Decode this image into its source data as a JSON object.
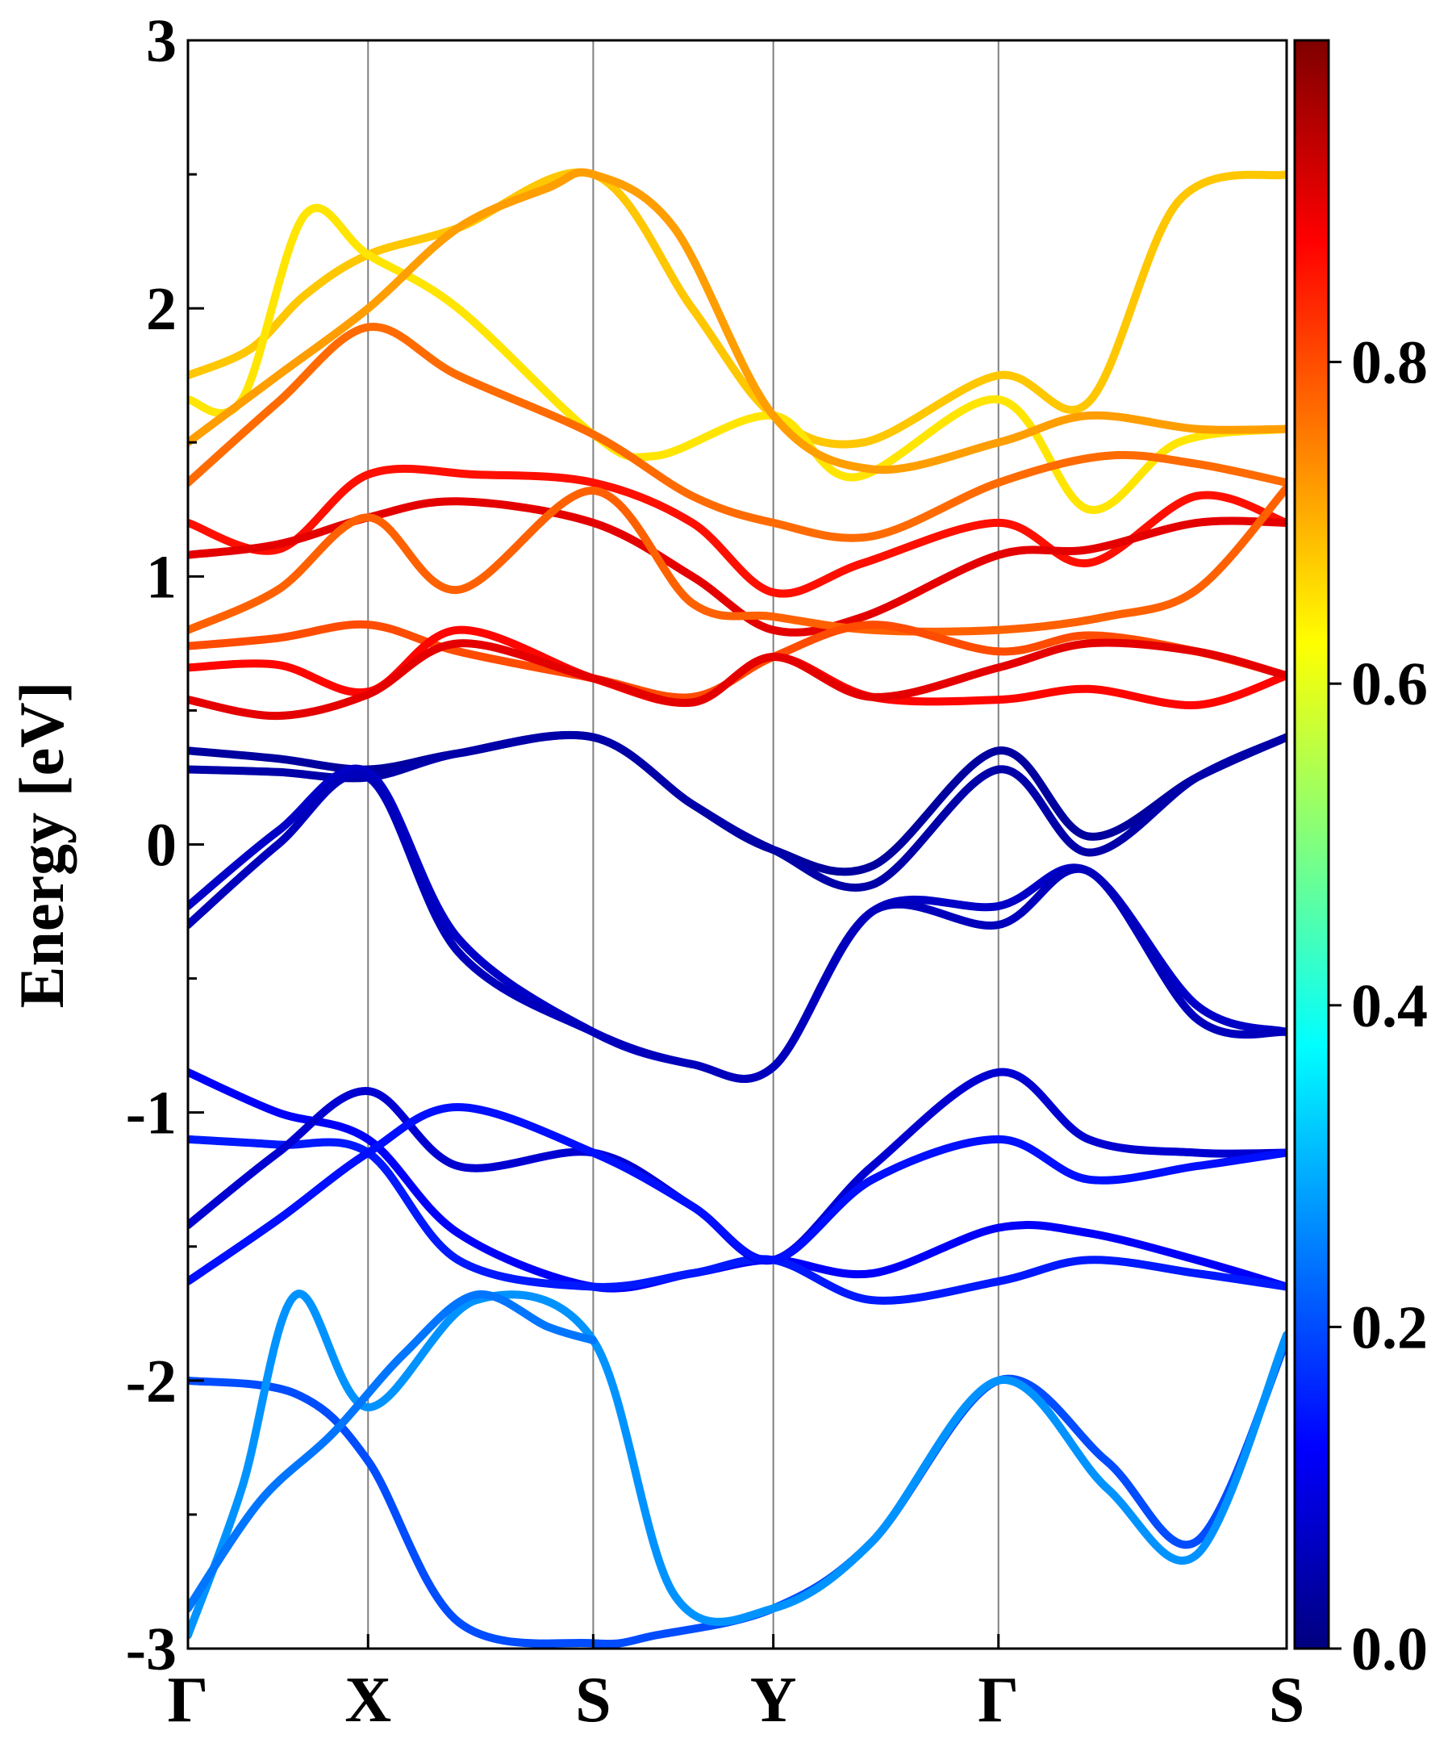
{
  "chart_data": {
    "type": "line",
    "title": "",
    "xlabel": "",
    "ylabel": "Energy [eV]",
    "ylim": [
      -3,
      3
    ],
    "yticks": [
      "3",
      "2",
      "1",
      "0",
      "-1",
      "-2",
      "-3"
    ],
    "ytick_values": [
      3,
      2,
      1,
      0,
      -1,
      -2,
      -3
    ],
    "kpath": {
      "labels": [
        "Γ",
        "X",
        "S",
        "Y",
        "Γ",
        "S"
      ],
      "positions": [
        0,
        1,
        2.25,
        3.25,
        4.5,
        6.1
      ]
    },
    "colorbar": {
      "range": [
        0.0,
        1.0
      ],
      "ticks": [
        "0.0",
        "0.2",
        "0.4",
        "0.6",
        "0.8"
      ],
      "tick_values": [
        0.0,
        0.2,
        0.4,
        0.6,
        0.8
      ],
      "colormap": "jet",
      "colormap_stops": [
        "#00007f",
        "#0000ff",
        "#007fff",
        "#00ffff",
        "#7fff7f",
        "#ffff00",
        "#ff7f00",
        "#ff0000",
        "#7f0000"
      ]
    },
    "series": [
      {
        "x": [
          0,
          0.35,
          0.65,
          1,
          1.5,
          2.25,
          2.8,
          3.25,
          3.75,
          4.5,
          5,
          5.5,
          6.1
        ],
        "y": [
          1.75,
          1.85,
          2.05,
          2.2,
          2.3,
          2.5,
          2.0,
          1.6,
          1.5,
          1.75,
          1.65,
          2.4,
          2.5
        ],
        "c": 0.68
      },
      {
        "x": [
          0,
          0.3,
          0.65,
          1,
          1.5,
          2.25,
          2.6,
          3.25,
          3.7,
          4.5,
          5,
          5.5,
          6.1
        ],
        "y": [
          1.66,
          1.66,
          2.35,
          2.2,
          2.0,
          1.53,
          1.45,
          1.6,
          1.37,
          1.66,
          1.25,
          1.5,
          1.55
        ],
        "c": 0.65
      },
      {
        "x": [
          0,
          0.5,
          1,
          1.5,
          2,
          2.25,
          2.7,
          3.25,
          3.8,
          4.5,
          5,
          5.6,
          6.1
        ],
        "y": [
          1.5,
          1.75,
          2.0,
          2.3,
          2.45,
          2.5,
          2.3,
          1.6,
          1.4,
          1.5,
          1.6,
          1.55,
          1.55
        ],
        "c": 0.72
      },
      {
        "x": [
          0,
          0.5,
          1,
          1.5,
          2.25,
          2.8,
          3.25,
          3.8,
          4.5,
          5.1,
          5.6,
          6.1
        ],
        "y": [
          1.35,
          1.65,
          1.93,
          1.75,
          1.53,
          1.3,
          1.2,
          1.15,
          1.35,
          1.45,
          1.42,
          1.35
        ],
        "c": 0.77
      },
      {
        "x": [
          0,
          0.5,
          1,
          1.6,
          2.25,
          2.8,
          3.25,
          3.75,
          4.5,
          5,
          5.6,
          6.1
        ],
        "y": [
          1.2,
          1.1,
          1.38,
          1.38,
          1.35,
          1.2,
          0.94,
          1.05,
          1.2,
          1.05,
          1.3,
          1.2
        ],
        "c": 0.86
      },
      {
        "x": [
          0,
          0.5,
          1,
          1.5,
          2.25,
          2.8,
          3.25,
          3.75,
          4.5,
          5,
          5.6,
          6.1
        ],
        "y": [
          1.08,
          1.12,
          1.22,
          1.28,
          1.2,
          1.0,
          0.8,
          0.85,
          1.08,
          1.1,
          1.2,
          1.2
        ],
        "c": 0.9
      },
      {
        "x": [
          0,
          0.5,
          1,
          1.5,
          2.25,
          2.8,
          3.25,
          3.8,
          4.5,
          5.1,
          5.6,
          6.1
        ],
        "y": [
          0.8,
          0.95,
          1.22,
          0.95,
          1.32,
          0.9,
          0.85,
          0.8,
          0.8,
          0.85,
          0.95,
          1.33
        ],
        "c": 0.78
      },
      {
        "x": [
          0,
          0.5,
          1,
          1.5,
          2.25,
          2.8,
          3.25,
          3.8,
          4.5,
          5,
          5.6,
          6.1
        ],
        "y": [
          0.74,
          0.77,
          0.82,
          0.72,
          0.62,
          0.55,
          0.7,
          0.82,
          0.72,
          0.78,
          0.72,
          0.63
        ],
        "c": 0.8
      },
      {
        "x": [
          0,
          0.5,
          1,
          1.5,
          2.25,
          2.8,
          3.25,
          3.8,
          4.5,
          5,
          5.6,
          6.1
        ],
        "y": [
          0.66,
          0.67,
          0.57,
          0.8,
          0.62,
          0.53,
          0.7,
          0.55,
          0.54,
          0.58,
          0.52,
          0.63
        ],
        "c": 0.87
      },
      {
        "x": [
          0,
          0.5,
          1,
          1.5,
          2.25,
          2.8,
          3.25,
          3.8,
          4.5,
          5,
          5.6,
          6.1
        ],
        "y": [
          0.54,
          0.48,
          0.56,
          0.75,
          0.62,
          0.53,
          0.7,
          0.55,
          0.66,
          0.75,
          0.72,
          0.63
        ],
        "c": 0.9
      },
      {
        "x": [
          0,
          0.5,
          1,
          1.5,
          2.25,
          2.8,
          3.25,
          3.8,
          4.5,
          5,
          5.6,
          6.1
        ],
        "y": [
          0.35,
          0.32,
          0.28,
          0.34,
          0.4,
          0.15,
          -0.02,
          -0.08,
          0.35,
          0.03,
          0.25,
          0.4
        ],
        "c": 0.03
      },
      {
        "x": [
          0,
          0.5,
          1,
          1.5,
          2.25,
          2.8,
          3.25,
          3.8,
          4.5,
          5,
          5.6,
          6.1
        ],
        "y": [
          0.28,
          0.27,
          0.25,
          0.34,
          0.4,
          0.15,
          -0.02,
          -0.15,
          0.28,
          -0.03,
          0.25,
          0.4
        ],
        "c": 0.04
      },
      {
        "x": [
          0,
          0.5,
          1,
          1.5,
          2.25,
          2.8,
          3.25,
          3.8,
          4.5,
          5,
          5.6,
          6.1
        ],
        "y": [
          -0.23,
          0.05,
          0.27,
          -0.35,
          -0.7,
          -0.82,
          -0.83,
          -0.25,
          -0.23,
          -0.1,
          -0.6,
          -0.7
        ],
        "c": 0.07
      },
      {
        "x": [
          0,
          0.5,
          1,
          1.5,
          2.25,
          2.8,
          3.25,
          3.8,
          4.5,
          5,
          5.6,
          6.1
        ],
        "y": [
          -0.3,
          0.0,
          0.25,
          -0.4,
          -0.7,
          -0.82,
          -0.83,
          -0.25,
          -0.3,
          -0.1,
          -0.65,
          -0.7
        ],
        "c": 0.06
      },
      {
        "x": [
          0,
          0.5,
          1,
          1.5,
          2.25,
          2.8,
          3.25,
          3.8,
          4.5,
          5,
          5.6,
          6.1
        ],
        "y": [
          -0.85,
          -1.0,
          -1.1,
          -1.45,
          -1.65,
          -1.6,
          -1.55,
          -1.6,
          -1.43,
          -1.45,
          -1.55,
          -1.65
        ],
        "c": 0.12
      },
      {
        "x": [
          0,
          0.5,
          1,
          1.5,
          2.25,
          2.8,
          3.25,
          3.8,
          4.5,
          5,
          5.6,
          6.1
        ],
        "y": [
          -1.1,
          -1.12,
          -1.15,
          -1.55,
          -1.65,
          -1.6,
          -1.55,
          -1.7,
          -1.63,
          -1.55,
          -1.6,
          -1.65
        ],
        "c": 0.15
      },
      {
        "x": [
          0,
          0.5,
          1,
          1.5,
          2.25,
          2.8,
          3.25,
          3.8,
          4.5,
          5,
          5.6,
          6.1
        ],
        "y": [
          -1.42,
          -1.15,
          -0.92,
          -1.2,
          -1.15,
          -1.35,
          -1.55,
          -1.2,
          -0.85,
          -1.1,
          -1.15,
          -1.15
        ],
        "c": 0.08
      },
      {
        "x": [
          0,
          0.5,
          1,
          1.5,
          2.25,
          2.8,
          3.25,
          3.8,
          4.5,
          5,
          5.6,
          6.1
        ],
        "y": [
          -1.63,
          -1.4,
          -1.15,
          -0.98,
          -1.15,
          -1.35,
          -1.55,
          -1.25,
          -1.1,
          -1.25,
          -1.2,
          -1.15
        ],
        "c": 0.14
      },
      {
        "x": [
          0,
          0.6,
          1,
          1.5,
          2.25,
          2.6,
          3.25,
          3.8,
          4.5,
          5.1,
          5.6,
          6.1
        ],
        "y": [
          -2.0,
          -2.05,
          -2.3,
          -2.9,
          -2.98,
          -2.95,
          -2.85,
          -2.6,
          -2.0,
          -2.3,
          -2.6,
          -1.85
        ],
        "c": 0.2
      },
      {
        "x": [
          0,
          0.3,
          0.6,
          1,
          1.6,
          2.25,
          2.7,
          3.25,
          3.8,
          4.5,
          5.1,
          5.6,
          6.1
        ],
        "y": [
          -2.95,
          -2.4,
          -1.68,
          -2.1,
          -1.7,
          -1.85,
          -2.8,
          -2.85,
          -2.6,
          -2.0,
          -2.4,
          -2.65,
          -1.83
        ],
        "c": 0.27
      },
      {
        "x": [
          0,
          0.4,
          0.8,
          1.2,
          1.6,
          2.0,
          2.25
        ],
        "y": [
          -2.85,
          -2.45,
          -2.2,
          -1.9,
          -1.68,
          -1.8,
          -1.85
        ],
        "c": 0.24
      }
    ]
  }
}
